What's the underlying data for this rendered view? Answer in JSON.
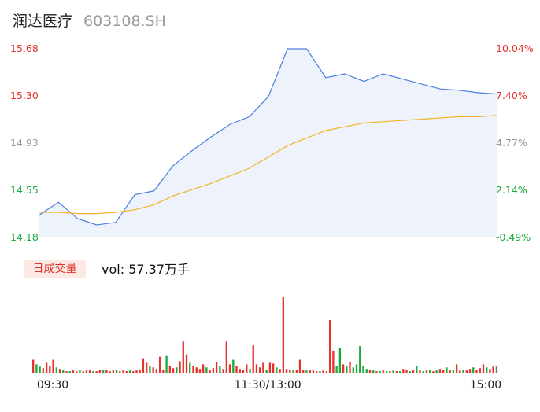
{
  "header": {
    "name": "润达医疗",
    "code": "603108.SH"
  },
  "badge": {
    "label": "日成交量"
  },
  "volume": {
    "label": "vol:",
    "value": "57.37万手"
  },
  "colors": {
    "price_line": "#4a7fe0",
    "avg_line": "#f5b224",
    "up": "#e8312b",
    "down": "#1aab3b",
    "neutral": "#777777",
    "fill": "#eef2fb"
  },
  "chart_data": {
    "type": "line",
    "y_left_ticks": [
      "15.68",
      "15.30",
      "14.93",
      "14.55",
      "14.18"
    ],
    "y_right_ticks": [
      "10.04%",
      "7.40%",
      "4.77%",
      "2.14%",
      "-0.49%"
    ],
    "x_ticks": [
      "09:30",
      "11:30/13:00",
      "15:00"
    ],
    "ylim": [
      14.18,
      15.68
    ],
    "series": [
      {
        "x": [
          "09:30",
          "09:40",
          "09:50",
          "10:00",
          "10:10",
          "10:20",
          "10:30",
          "10:40",
          "10:50",
          "11:00",
          "11:10",
          "11:20",
          "11:30/13:00",
          "13:10",
          "13:20",
          "13:30",
          "13:40",
          "13:50",
          "14:00",
          "14:10",
          "14:20",
          "14:30",
          "14:40",
          "14:50",
          "15:00"
        ],
        "values": [
          14.36,
          14.46,
          14.33,
          14.28,
          14.3,
          14.52,
          14.55,
          14.75,
          14.87,
          14.98,
          15.08,
          15.14,
          15.3,
          15.68,
          15.68,
          15.45,
          15.48,
          15.42,
          15.48,
          15.44,
          15.4,
          15.36,
          15.35,
          15.33,
          15.32
        ]
      },
      {
        "x": [
          "09:30",
          "09:40",
          "09:50",
          "10:00",
          "10:10",
          "10:20",
          "10:30",
          "10:40",
          "10:50",
          "11:00",
          "11:10",
          "11:20",
          "11:30/13:00",
          "13:10",
          "13:20",
          "13:30",
          "13:40",
          "13:50",
          "14:00",
          "14:10",
          "14:20",
          "14:30",
          "14:40",
          "14:50",
          "15:00"
        ],
        "values": [
          14.38,
          14.38,
          14.37,
          14.37,
          14.38,
          14.4,
          14.44,
          14.51,
          14.56,
          14.61,
          14.67,
          14.73,
          14.82,
          14.91,
          14.97,
          15.03,
          15.06,
          15.09,
          15.1,
          15.11,
          15.12,
          15.13,
          15.14,
          15.14,
          15.15
        ]
      }
    ],
    "volume_bars": [
      {
        "v": 0.18,
        "d": "up"
      },
      {
        "v": 0.12,
        "d": "down"
      },
      {
        "v": 0.09,
        "d": "down"
      },
      {
        "v": 0.07,
        "d": "up"
      },
      {
        "v": 0.14,
        "d": "up"
      },
      {
        "v": 0.1,
        "d": "up"
      },
      {
        "v": 0.18,
        "d": "up"
      },
      {
        "v": 0.08,
        "d": "down"
      },
      {
        "v": 0.06,
        "d": "up"
      },
      {
        "v": 0.05,
        "d": "down"
      },
      {
        "v": 0.03,
        "d": "up"
      },
      {
        "v": 0.03,
        "d": "down"
      },
      {
        "v": 0.04,
        "d": "up"
      },
      {
        "v": 0.03,
        "d": "up"
      },
      {
        "v": 0.05,
        "d": "down"
      },
      {
        "v": 0.03,
        "d": "up"
      },
      {
        "v": 0.05,
        "d": "up"
      },
      {
        "v": 0.04,
        "d": "up"
      },
      {
        "v": 0.03,
        "d": "down"
      },
      {
        "v": 0.03,
        "d": "up"
      },
      {
        "v": 0.05,
        "d": "up"
      },
      {
        "v": 0.04,
        "d": "down"
      },
      {
        "v": 0.05,
        "d": "up"
      },
      {
        "v": 0.03,
        "d": "up"
      },
      {
        "v": 0.04,
        "d": "up"
      },
      {
        "v": 0.05,
        "d": "down"
      },
      {
        "v": 0.03,
        "d": "up"
      },
      {
        "v": 0.04,
        "d": "up"
      },
      {
        "v": 0.03,
        "d": "up"
      },
      {
        "v": 0.04,
        "d": "down"
      },
      {
        "v": 0.03,
        "d": "up"
      },
      {
        "v": 0.04,
        "d": "up"
      },
      {
        "v": 0.05,
        "d": "up"
      },
      {
        "v": 0.2,
        "d": "up"
      },
      {
        "v": 0.14,
        "d": "up"
      },
      {
        "v": 0.1,
        "d": "down"
      },
      {
        "v": 0.08,
        "d": "up"
      },
      {
        "v": 0.06,
        "d": "up"
      },
      {
        "v": 0.22,
        "d": "up"
      },
      {
        "v": 0.05,
        "d": "up"
      },
      {
        "v": 0.23,
        "d": "down"
      },
      {
        "v": 0.1,
        "d": "up"
      },
      {
        "v": 0.07,
        "d": "up"
      },
      {
        "v": 0.08,
        "d": "down"
      },
      {
        "v": 0.16,
        "d": "up"
      },
      {
        "v": 0.42,
        "d": "up"
      },
      {
        "v": 0.25,
        "d": "up"
      },
      {
        "v": 0.14,
        "d": "down"
      },
      {
        "v": 0.1,
        "d": "up"
      },
      {
        "v": 0.08,
        "d": "up"
      },
      {
        "v": 0.06,
        "d": "up"
      },
      {
        "v": 0.12,
        "d": "up"
      },
      {
        "v": 0.08,
        "d": "down"
      },
      {
        "v": 0.05,
        "d": "up"
      },
      {
        "v": 0.07,
        "d": "up"
      },
      {
        "v": 0.15,
        "d": "up"
      },
      {
        "v": 0.1,
        "d": "down"
      },
      {
        "v": 0.06,
        "d": "up"
      },
      {
        "v": 0.42,
        "d": "up"
      },
      {
        "v": 0.12,
        "d": "up"
      },
      {
        "v": 0.18,
        "d": "down"
      },
      {
        "v": 0.1,
        "d": "up"
      },
      {
        "v": 0.06,
        "d": "up"
      },
      {
        "v": 0.05,
        "d": "up"
      },
      {
        "v": 0.12,
        "d": "up"
      },
      {
        "v": 0.06,
        "d": "down"
      },
      {
        "v": 0.37,
        "d": "up"
      },
      {
        "v": 0.12,
        "d": "up"
      },
      {
        "v": 0.08,
        "d": "up"
      },
      {
        "v": 0.14,
        "d": "up"
      },
      {
        "v": 0.05,
        "d": "down"
      },
      {
        "v": 0.14,
        "d": "up"
      },
      {
        "v": 0.13,
        "d": "up"
      },
      {
        "v": 0.08,
        "d": "down"
      },
      {
        "v": 0.06,
        "d": "up"
      },
      {
        "v": 1.0,
        "d": "up"
      },
      {
        "v": 0.06,
        "d": "up"
      },
      {
        "v": 0.05,
        "d": "up"
      },
      {
        "v": 0.04,
        "d": "down"
      },
      {
        "v": 0.05,
        "d": "up"
      },
      {
        "v": 0.18,
        "d": "up"
      },
      {
        "v": 0.05,
        "d": "up"
      },
      {
        "v": 0.04,
        "d": "down"
      },
      {
        "v": 0.05,
        "d": "up"
      },
      {
        "v": 0.04,
        "d": "up"
      },
      {
        "v": 0.03,
        "d": "up"
      },
      {
        "v": 0.03,
        "d": "down"
      },
      {
        "v": 0.04,
        "d": "up"
      },
      {
        "v": 0.03,
        "d": "up"
      },
      {
        "v": 0.7,
        "d": "up"
      },
      {
        "v": 0.3,
        "d": "up"
      },
      {
        "v": 0.1,
        "d": "down"
      },
      {
        "v": 0.33,
        "d": "down"
      },
      {
        "v": 0.12,
        "d": "up"
      },
      {
        "v": 0.1,
        "d": "down"
      },
      {
        "v": 0.15,
        "d": "up"
      },
      {
        "v": 0.08,
        "d": "down"
      },
      {
        "v": 0.12,
        "d": "down"
      },
      {
        "v": 0.36,
        "d": "down"
      },
      {
        "v": 0.1,
        "d": "down"
      },
      {
        "v": 0.06,
        "d": "down"
      },
      {
        "v": 0.05,
        "d": "up"
      },
      {
        "v": 0.04,
        "d": "down"
      },
      {
        "v": 0.03,
        "d": "up"
      },
      {
        "v": 0.03,
        "d": "down"
      },
      {
        "v": 0.04,
        "d": "up"
      },
      {
        "v": 0.03,
        "d": "down"
      },
      {
        "v": 0.03,
        "d": "up"
      },
      {
        "v": 0.04,
        "d": "down"
      },
      {
        "v": 0.03,
        "d": "up"
      },
      {
        "v": 0.03,
        "d": "down"
      },
      {
        "v": 0.06,
        "d": "up"
      },
      {
        "v": 0.05,
        "d": "up"
      },
      {
        "v": 0.03,
        "d": "down"
      },
      {
        "v": 0.04,
        "d": "up"
      },
      {
        "v": 0.1,
        "d": "down"
      },
      {
        "v": 0.05,
        "d": "up"
      },
      {
        "v": 0.03,
        "d": "down"
      },
      {
        "v": 0.04,
        "d": "up"
      },
      {
        "v": 0.05,
        "d": "down"
      },
      {
        "v": 0.03,
        "d": "up"
      },
      {
        "v": 0.04,
        "d": "down"
      },
      {
        "v": 0.06,
        "d": "up"
      },
      {
        "v": 0.05,
        "d": "up"
      },
      {
        "v": 0.08,
        "d": "down"
      },
      {
        "v": 0.04,
        "d": "up"
      },
      {
        "v": 0.05,
        "d": "down"
      },
      {
        "v": 0.12,
        "d": "up"
      },
      {
        "v": 0.04,
        "d": "up"
      },
      {
        "v": 0.05,
        "d": "down"
      },
      {
        "v": 0.04,
        "d": "up"
      },
      {
        "v": 0.06,
        "d": "up"
      },
      {
        "v": 0.08,
        "d": "down"
      },
      {
        "v": 0.05,
        "d": "up"
      },
      {
        "v": 0.07,
        "d": "up"
      },
      {
        "v": 0.12,
        "d": "up"
      },
      {
        "v": 0.08,
        "d": "down"
      },
      {
        "v": 0.06,
        "d": "up"
      },
      {
        "v": 0.09,
        "d": "up"
      },
      {
        "v": 0.1,
        "d": "neutral"
      }
    ]
  }
}
